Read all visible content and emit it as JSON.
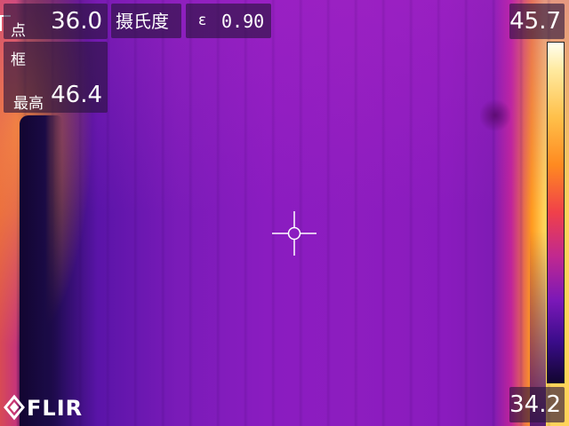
{
  "spot": {
    "label": "点",
    "value": "36.0"
  },
  "unit": {
    "label": "摄氏度"
  },
  "emissivity": {
    "symbol": "ε",
    "value": "0.90"
  },
  "box": {
    "label": "框",
    "max_label": "最高",
    "max_value": "46.4"
  },
  "scale": {
    "max": "45.7",
    "min": "34.2"
  },
  "brand": {
    "name": "FLIR"
  },
  "colors": {
    "palette": "iron",
    "accent_overlay": "#28143c"
  }
}
